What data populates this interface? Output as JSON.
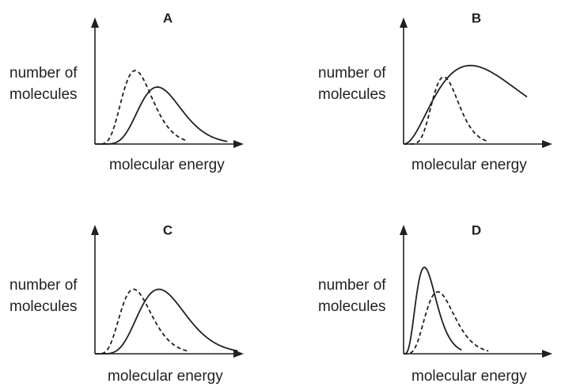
{
  "chart_data": [
    {
      "type": "line",
      "panel": "A",
      "ylabel": [
        "number of",
        "molecules"
      ],
      "xlabel": "molecular energy",
      "grid": false,
      "series": [
        {
          "style": "dashed",
          "peak_energy": 0.27,
          "peak_height": 0.58,
          "tail_end_energy": 0.62
        },
        {
          "style": "solid",
          "peak_energy": 0.42,
          "peak_height": 0.45,
          "tail_end_energy": 0.89
        }
      ]
    },
    {
      "type": "line",
      "panel": "B",
      "ylabel": [
        "number of",
        "molecules"
      ],
      "xlabel": "molecular energy",
      "grid": false,
      "series": [
        {
          "style": "dashed",
          "peak_energy": 0.27,
          "peak_height": 0.53,
          "tail_end_energy": 0.56
        },
        {
          "style": "solid",
          "peak_energy": 0.45,
          "peak_height": 0.62,
          "tail_end_energy": 0.83
        }
      ]
    },
    {
      "type": "line",
      "panel": "C",
      "ylabel": [
        "number of",
        "molecules"
      ],
      "xlabel": "molecular energy",
      "grid": false,
      "series": [
        {
          "style": "dashed",
          "peak_energy": 0.26,
          "peak_height": 0.5,
          "tail_end_energy": 0.62
        },
        {
          "style": "solid",
          "peak_energy": 0.43,
          "peak_height": 0.5,
          "tail_end_energy": 0.96
        }
      ]
    },
    {
      "type": "line",
      "panel": "D",
      "ylabel": [
        "number of",
        "molecules"
      ],
      "xlabel": "molecular energy",
      "grid": false,
      "series": [
        {
          "style": "solid",
          "peak_energy": 0.14,
          "peak_height": 0.67,
          "tail_end_energy": 0.39
        },
        {
          "style": "dashed",
          "peak_energy": 0.23,
          "peak_height": 0.48,
          "tail_end_energy": 0.57
        }
      ]
    }
  ]
}
